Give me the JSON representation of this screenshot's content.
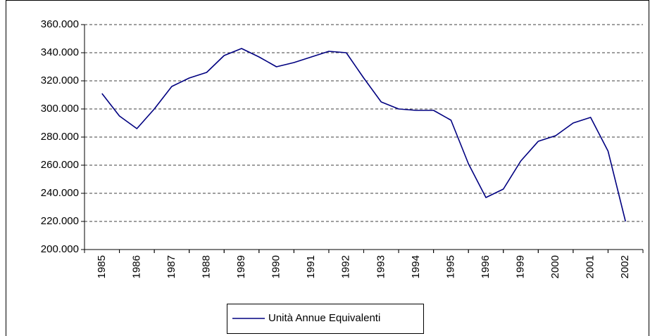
{
  "chart_data": {
    "type": "line",
    "categories": [
      "1985",
      null,
      "1986",
      null,
      "1987",
      null,
      "1988",
      null,
      "1989",
      null,
      "1990",
      null,
      "1991",
      null,
      "1992",
      null,
      "1993",
      null,
      "1994",
      null,
      "1995",
      null,
      "1996",
      null,
      "1999",
      null,
      "2000",
      null,
      "2001",
      null,
      "2002"
    ],
    "series": [
      {
        "name": "Unità Annue Equivalenti",
        "color": "#000080",
        "values": [
          311000,
          295000,
          286000,
          300000,
          316000,
          322000,
          326000,
          338000,
          343000,
          337000,
          330000,
          333000,
          337000,
          341000,
          340000,
          322000,
          305000,
          300000,
          299000,
          299000,
          292000,
          261000,
          237000,
          243000,
          263000,
          277000,
          281000,
          290000,
          294000,
          270000,
          220000
        ]
      }
    ],
    "ylim": [
      200000,
      360000
    ],
    "yticks": [
      {
        "value": 200000,
        "label": "200.000"
      },
      {
        "value": 220000,
        "label": "220.000"
      },
      {
        "value": 240000,
        "label": "240.000"
      },
      {
        "value": 260000,
        "label": "260.000"
      },
      {
        "value": 280000,
        "label": "280.000"
      },
      {
        "value": 300000,
        "label": "300.000"
      },
      {
        "value": 320000,
        "label": "320.000"
      },
      {
        "value": 340000,
        "label": "340.000"
      },
      {
        "value": 360000,
        "label": "360.000"
      }
    ],
    "grid": true
  }
}
